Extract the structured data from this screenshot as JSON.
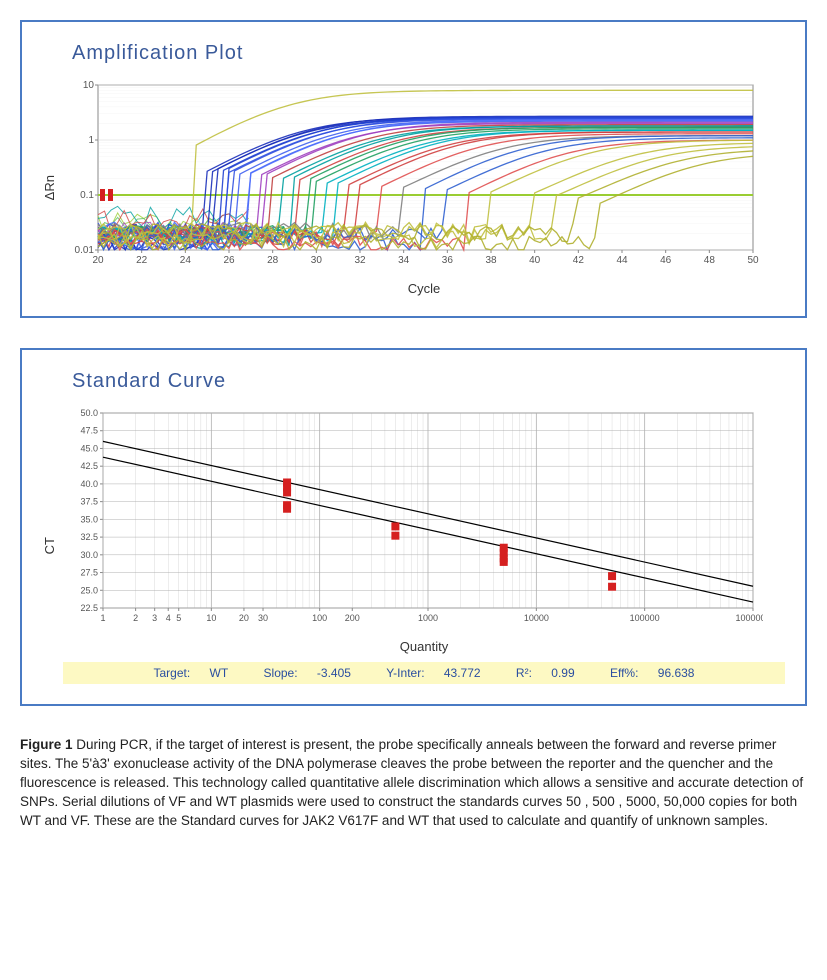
{
  "ampPlot": {
    "title": "Amplification Plot",
    "type": "line",
    "ylabel": "ΔRn",
    "xlabel": "Cycle",
    "xlim": [
      20,
      50
    ],
    "xticks": [
      20,
      22,
      24,
      26,
      28,
      30,
      32,
      34,
      36,
      38,
      40,
      42,
      44,
      46,
      48,
      50
    ],
    "ylim_log": [
      0.01,
      10
    ],
    "yticks": [
      0.01,
      0.1,
      1,
      10
    ],
    "ytick_labels": [
      "0.01",
      "0.1",
      "1",
      "10"
    ],
    "threshold_y": 0.1,
    "threshold_color": "#9acd32",
    "background_color": "#ffffff",
    "grid_color": "#d0d0d0",
    "border_color": "#4a7bc4",
    "axis_color": "#888888",
    "tick_fontsize": 10,
    "title_fontsize": 20,
    "title_color": "#3a5a9a",
    "label_fontsize": 13,
    "curves": [
      {
        "ct": 26.0,
        "plateau": 2.6,
        "color": "#1a2fba"
      },
      {
        "ct": 26.2,
        "plateau": 2.5,
        "color": "#1a2fba"
      },
      {
        "ct": 26.4,
        "plateau": 2.7,
        "color": "#1a2fba"
      },
      {
        "ct": 26.6,
        "plateau": 2.5,
        "color": "#2040d0"
      },
      {
        "ct": 26.8,
        "plateau": 2.6,
        "color": "#2040d0"
      },
      {
        "ct": 27.0,
        "plateau": 2.4,
        "color": "#3050e0"
      },
      {
        "ct": 27.2,
        "plateau": 2.5,
        "color": "#3050e0"
      },
      {
        "ct": 27.5,
        "plateau": 2.3,
        "color": "#4060f0"
      },
      {
        "ct": 27.8,
        "plateau": 2.2,
        "color": "#4060f0"
      },
      {
        "ct": 28.0,
        "plateau": 2.3,
        "color": "#5070ff"
      },
      {
        "ct": 28.3,
        "plateau": 2.0,
        "color": "#a040c0"
      },
      {
        "ct": 28.6,
        "plateau": 2.1,
        "color": "#a040c0"
      },
      {
        "ct": 29.0,
        "plateau": 1.9,
        "color": "#c04040"
      },
      {
        "ct": 29.4,
        "plateau": 1.8,
        "color": "#00a0a0"
      },
      {
        "ct": 29.8,
        "plateau": 1.8,
        "color": "#00a0a0"
      },
      {
        "ct": 30.2,
        "plateau": 1.7,
        "color": "#d04040"
      },
      {
        "ct": 30.6,
        "plateau": 1.7,
        "color": "#20a060"
      },
      {
        "ct": 31.0,
        "plateau": 1.6,
        "color": "#20a060"
      },
      {
        "ct": 31.5,
        "plateau": 1.5,
        "color": "#00b0c0"
      },
      {
        "ct": 32.0,
        "plateau": 1.5,
        "color": "#00b0c0"
      },
      {
        "ct": 32.5,
        "plateau": 1.4,
        "color": "#d04040"
      },
      {
        "ct": 33.0,
        "plateau": 1.4,
        "color": "#d04040"
      },
      {
        "ct": 34.0,
        "plateau": 1.3,
        "color": "#e05050"
      },
      {
        "ct": 35.0,
        "plateau": 1.2,
        "color": "#808080"
      },
      {
        "ct": 36.0,
        "plateau": 1.2,
        "color": "#3060d0"
      },
      {
        "ct": 37.0,
        "plateau": 1.1,
        "color": "#3060d0"
      },
      {
        "ct": 38.0,
        "plateau": 1.0,
        "color": "#e05050"
      },
      {
        "ct": 39.0,
        "plateau": 1.0,
        "color": "#c0c040"
      },
      {
        "ct": 41.0,
        "plateau": 0.9,
        "color": "#c0c040"
      },
      {
        "ct": 42.0,
        "plateau": 0.8,
        "color": "#c0c040"
      },
      {
        "ct": 43.0,
        "plateau": 0.7,
        "color": "#b0b030"
      },
      {
        "ct": 44.0,
        "plateau": 0.6,
        "color": "#b0b030"
      },
      {
        "ct": 25.5,
        "plateau": 8.0,
        "color": "#c0c040"
      }
    ],
    "noise": [
      {
        "baseline": 0.03,
        "color": "#9acd32"
      },
      {
        "baseline": 0.025,
        "color": "#60c060"
      },
      {
        "baseline": 0.04,
        "color": "#00a0a0"
      },
      {
        "baseline": 0.02,
        "color": "#a040c0"
      },
      {
        "baseline": 0.035,
        "color": "#d04040"
      }
    ]
  },
  "stdCurve": {
    "title": "Standard Curve",
    "type": "scatter",
    "ylabel": "CT",
    "xlabel": "Quantity",
    "xlim_log": [
      1,
      1000000
    ],
    "xticks": [
      1,
      2,
      3,
      4,
      5,
      10,
      20,
      30,
      100,
      200,
      1000,
      10000,
      100000,
      1000000
    ],
    "xtick_labels": [
      "1",
      "2",
      "3",
      "4",
      "5",
      "10",
      "20",
      "30",
      "100",
      "200",
      "1000",
      "10000",
      "100000",
      "1000000"
    ],
    "ylim": [
      22.5,
      50
    ],
    "yticks": [
      22.5,
      25.0,
      27.5,
      30.0,
      32.5,
      35.0,
      37.5,
      40.0,
      42.5,
      45.0,
      47.5,
      50.0
    ],
    "ytick_labels": [
      "22.5",
      "25.0",
      "27.5",
      "30.0",
      "32.5",
      "35.0",
      "37.5",
      "40.0",
      "42.5",
      "45.0",
      "47.5",
      "50.0"
    ],
    "background_color": "#ffffff",
    "grid_color": "#b0b0b0",
    "border_color": "#4a7bc4",
    "axis_color": "#888888",
    "tick_fontsize": 9,
    "title_fontsize": 20,
    "title_color": "#3a5a9a",
    "label_fontsize": 13,
    "marker_color": "#d52020",
    "marker_size": 8,
    "line_color": "#000000",
    "lines": [
      {
        "slope": -3.405,
        "yinter": 46.0
      },
      {
        "slope": -3.405,
        "yinter": 43.772
      }
    ],
    "points": [
      {
        "x": 50,
        "y": 40.2
      },
      {
        "x": 50,
        "y": 39.5
      },
      {
        "x": 50,
        "y": 38.8
      },
      {
        "x": 50,
        "y": 37.0
      },
      {
        "x": 50,
        "y": 36.5
      },
      {
        "x": 500,
        "y": 34.0
      },
      {
        "x": 500,
        "y": 32.7
      },
      {
        "x": 5000,
        "y": 31.0
      },
      {
        "x": 5000,
        "y": 30.3
      },
      {
        "x": 5000,
        "y": 29.5
      },
      {
        "x": 5000,
        "y": 29.0
      },
      {
        "x": 50000,
        "y": 27.0
      },
      {
        "x": 50000,
        "y": 25.5
      }
    ],
    "stats": {
      "target_label": "Target:",
      "target": "WT",
      "slope_label": "Slope:",
      "slope": "-3.405",
      "yinter_label": "Y-Inter:",
      "yinter": "43.772",
      "r2_label": "R²:",
      "r2": "0.99",
      "eff_label": "Eff%:",
      "eff": "96.638"
    },
    "stats_bg": "#fdf9c3",
    "stats_color": "#2a4ea0"
  },
  "caption": {
    "label": "Figure 1",
    "text": "During PCR, if the target of interest is present, the probe specifically anneals between the forward and reverse primer sites. The 5'à3' exonuclease activity of the DNA polymerase cleaves the probe between the reporter and the quencher and the fluorescence is released. This technology called quantitative allele discrimination which allows a sensitive and accurate detection of SNPs. Serial dilutions of VF and WT plasmids were used to construct the standards curves  50 , 500 , 5000, 50,000  copies for both WT and VF. These are the Standard curves for JAK2 V617F and WT that used to calculate and quantify of unknown samples."
  }
}
